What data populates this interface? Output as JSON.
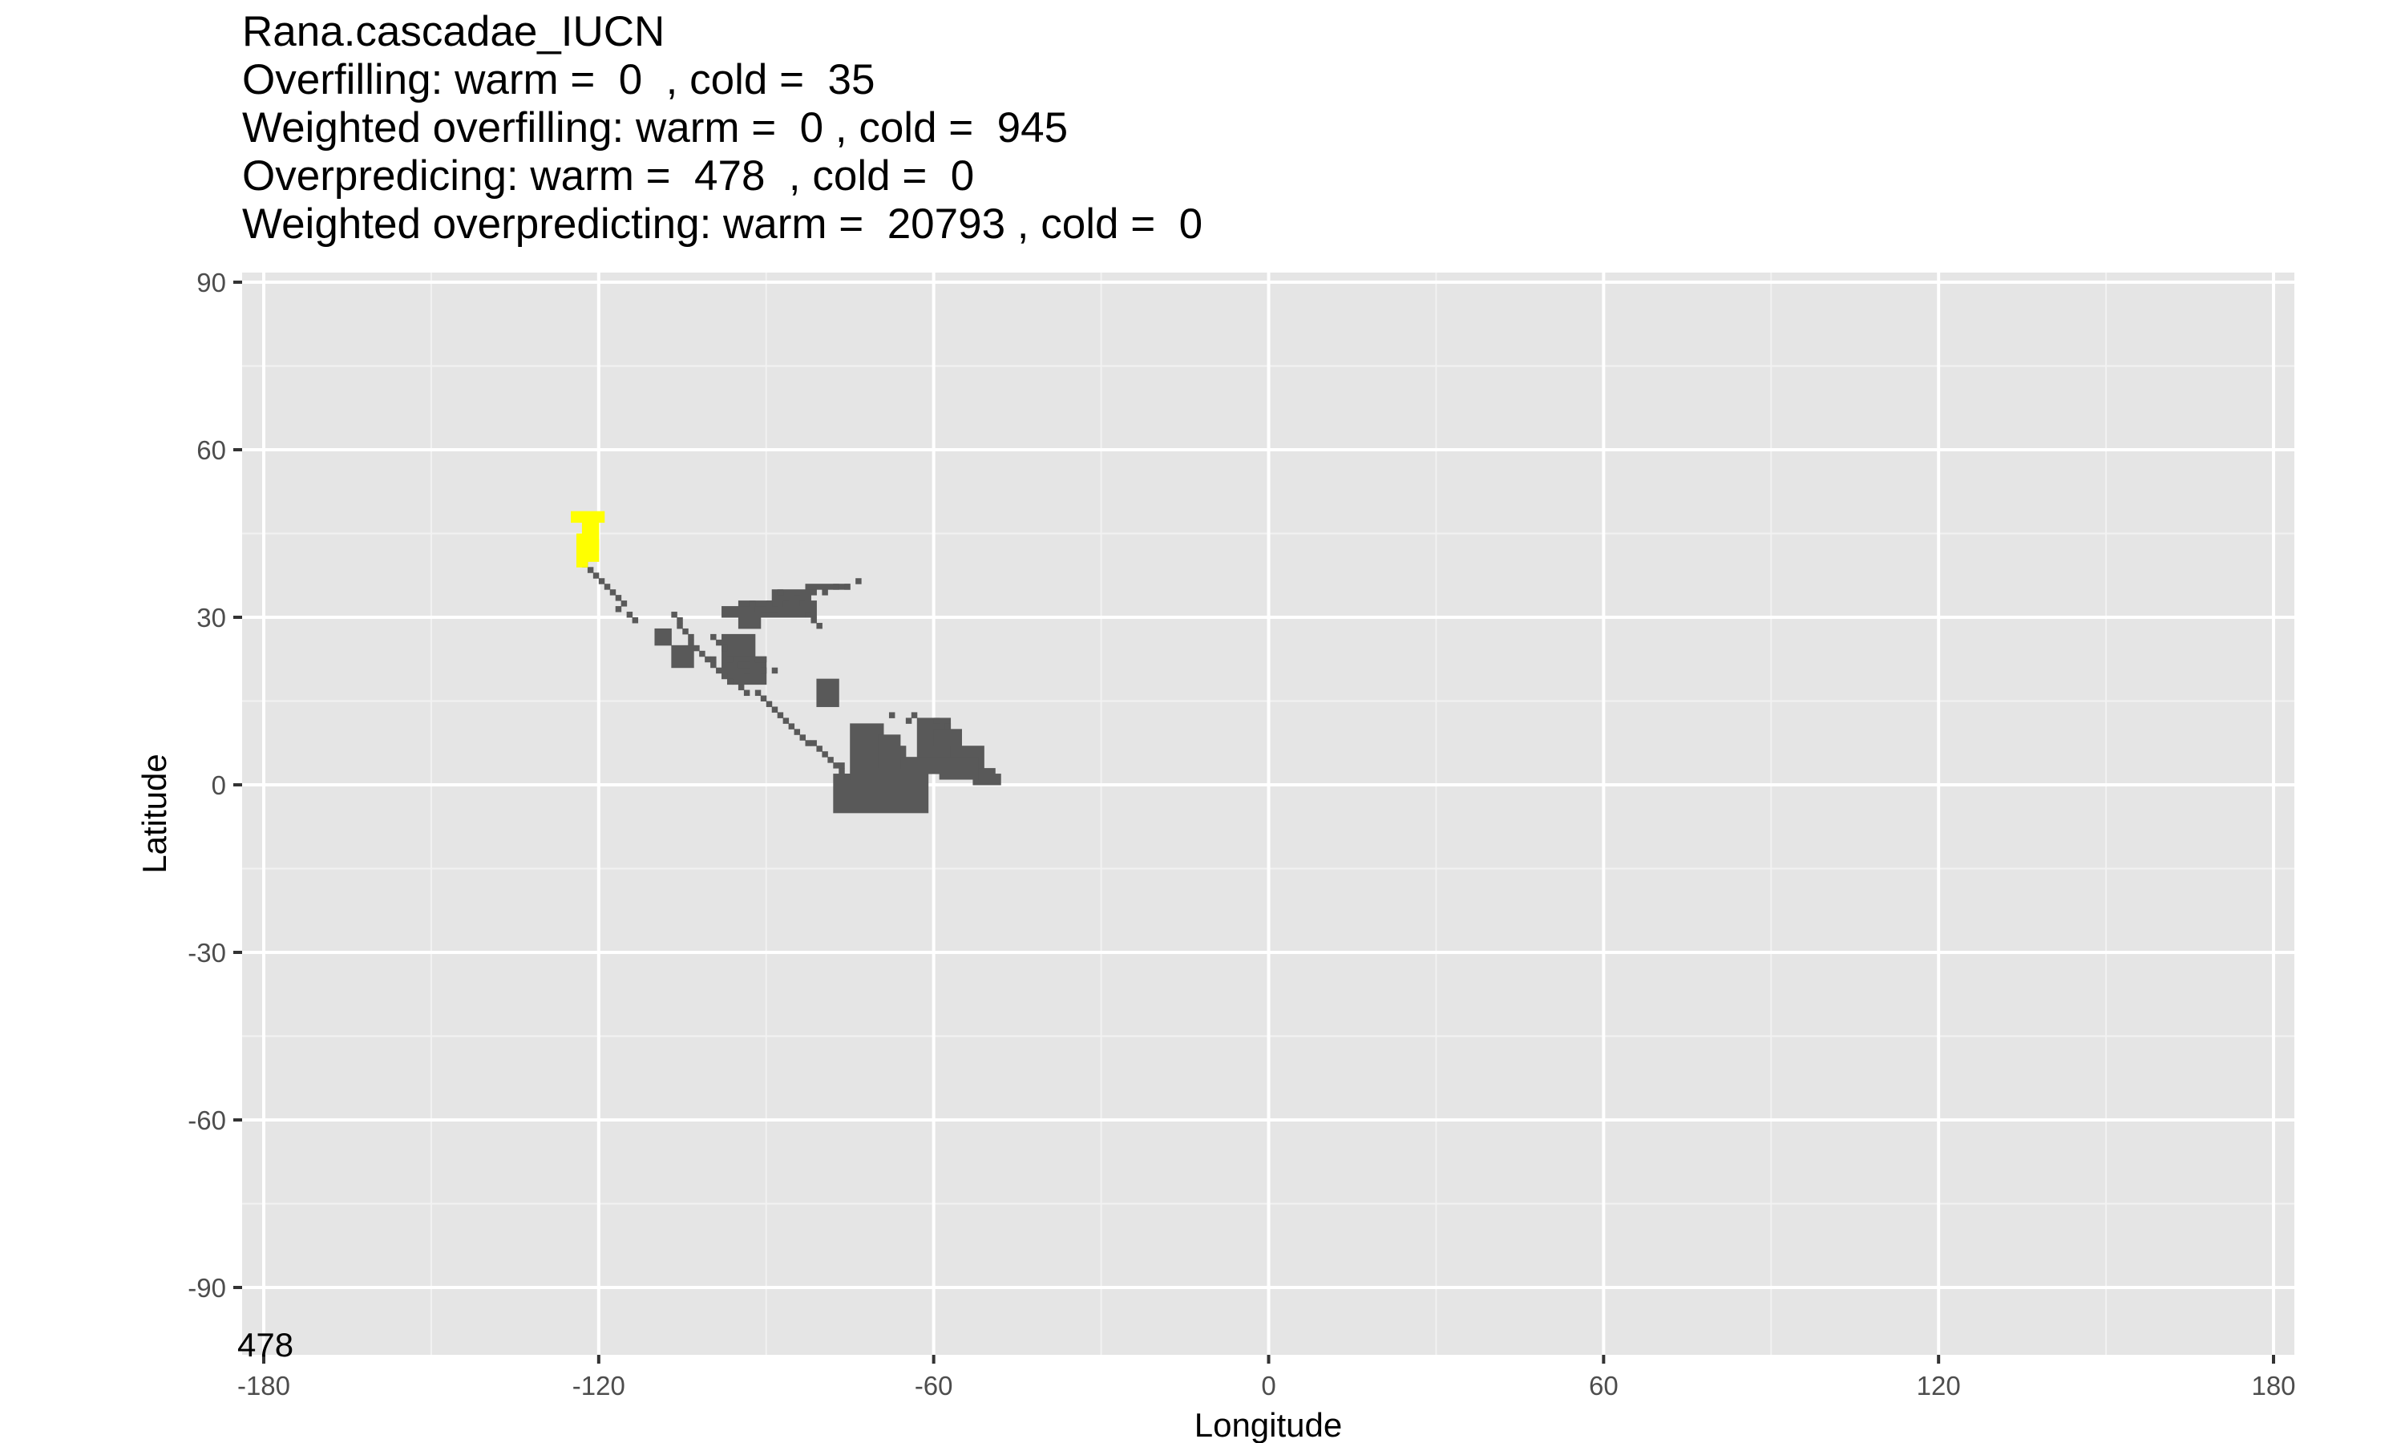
{
  "title_lines": [
    "Rana.cascadae_IUCN",
    "Overfilling: warm =  0  , cold =  35",
    "Weighted overfilling: warm =  0 , cold =  945",
    "Overpredicing: warm =  478  , cold =  0",
    "Weighted overpredicting: warm =  20793 , cold =  0"
  ],
  "panel_note": "478",
  "colors": {
    "panel": "#e5e5e5",
    "grid_major": "#ffffff",
    "grid_minor": "#f2f2f2",
    "range_cells": "#595959",
    "overfill_cells": "#ffff00",
    "tick_text": "#4d4d4d"
  },
  "chart_data": {
    "type": "heatmap",
    "title": "Rana.cascadae_IUCN",
    "xlabel": "Longitude",
    "ylabel": "Latitude",
    "xlim": [
      -180,
      180
    ],
    "ylim": [
      -90,
      90
    ],
    "x_ticks": [
      -180,
      -120,
      -60,
      0,
      60,
      120,
      180
    ],
    "y_ticks": [
      90,
      60,
      30,
      0,
      -30,
      -60,
      -90
    ],
    "grid": true,
    "legend": "none",
    "cell_size_deg": 1,
    "series": [
      {
        "color": "#595959",
        "cells": [
          [
            -123,
            39
          ],
          [
            -122,
            38
          ],
          [
            -121,
            37
          ],
          [
            -120,
            36
          ],
          [
            -119,
            35
          ],
          [
            -118,
            34
          ],
          [
            -117,
            33
          ],
          [
            -116,
            32
          ],
          [
            -117,
            31
          ],
          [
            -115,
            30
          ],
          [
            -114,
            29
          ],
          [
            -107,
            30
          ],
          [
            -106,
            29
          ],
          [
            -106,
            28
          ],
          [
            -105,
            27
          ],
          [
            -104,
            26
          ],
          [
            -104,
            25
          ],
          [
            -103,
            24
          ],
          [
            -102,
            23
          ],
          [
            -101,
            22
          ],
          [
            -100,
            21
          ],
          [
            -99,
            20
          ],
          [
            -98,
            19
          ],
          [
            -97,
            18
          ],
          [
            -95,
            17
          ],
          [
            -94,
            16
          ],
          [
            -92,
            16
          ],
          [
            -91,
            15
          ],
          [
            -90,
            14
          ],
          [
            -89,
            13
          ],
          [
            -88,
            12
          ],
          [
            -87,
            11
          ],
          [
            -86,
            10
          ],
          [
            -85,
            9
          ],
          [
            -84,
            8
          ],
          [
            -83,
            7
          ],
          [
            -82,
            7
          ],
          [
            -81,
            6
          ],
          [
            -80,
            5
          ],
          [
            -79,
            4
          ],
          [
            -78,
            3
          ],
          [
            -77,
            3
          ],
          [
            -77,
            2
          ],
          [
            -76,
            1
          ],
          [
            -100,
            26
          ],
          [
            -99,
            25
          ],
          [
            -100,
            22
          ],
          [
            -98,
            24
          ],
          [
            -97,
            22
          ],
          [
            -94,
            20
          ],
          [
            -91,
            20
          ],
          [
            -89,
            20
          ],
          [
            -95,
            21
          ],
          [
            -94,
            21
          ],
          [
            -92,
            22
          ],
          [
            -91,
            22
          ],
          [
            -93,
            32
          ],
          [
            -88,
            34
          ],
          [
            -85,
            33
          ],
          [
            -82,
            34
          ],
          [
            -80,
            34
          ],
          [
            -78,
            35
          ],
          [
            -76,
            35
          ],
          [
            -74,
            36
          ],
          [
            -92,
            31
          ],
          [
            -90,
            32
          ],
          [
            -87,
            32
          ],
          [
            -84,
            32
          ],
          [
            -83,
            30
          ],
          [
            -82,
            29
          ],
          [
            -81,
            28
          ],
          [
            -91,
            30
          ],
          [
            -90,
            30
          ],
          [
            -89,
            30
          ],
          [
            -68,
            12
          ],
          [
            -65,
            11
          ],
          [
            -64,
            12
          ],
          [
            -60,
            11
          ],
          [
            -58,
            10
          ]
        ],
        "blocks": [
          [
            -98,
            26,
            6,
            8
          ],
          [
            -96,
            22,
            6,
            5
          ],
          [
            -95,
            29,
            4,
            2
          ],
          [
            -107,
            24,
            4,
            4
          ],
          [
            -110,
            27,
            3,
            3
          ],
          [
            -95,
            32,
            14,
            3
          ],
          [
            -89,
            34,
            7,
            2
          ],
          [
            -83,
            35,
            8,
            1
          ],
          [
            -98,
            31,
            10,
            2
          ],
          [
            -81,
            18,
            4,
            5
          ],
          [
            -75,
            10,
            6,
            9
          ],
          [
            -78,
            1,
            17,
            7
          ],
          [
            -72,
            6,
            7,
            6
          ],
          [
            -63,
            11,
            6,
            9
          ],
          [
            -57,
            6,
            6,
            5
          ],
          [
            -53,
            2,
            4,
            3
          ],
          [
            -51,
            1,
            3,
            2
          ],
          [
            -66,
            4,
            12,
            3
          ],
          [
            -70,
            8,
            4,
            6
          ],
          [
            -59,
            4,
            7,
            4
          ],
          [
            -60,
            9,
            5,
            3
          ]
        ]
      },
      {
        "color": "#ffff00",
        "cells": [
          [
            -124,
            39
          ],
          [
            -123,
            39
          ]
        ],
        "blocks": [
          [
            -125,
            48,
            6,
            2
          ],
          [
            -123,
            46,
            3,
            7
          ],
          [
            -124,
            44,
            2,
            5
          ],
          [
            -122,
            43,
            2,
            2
          ]
        ]
      }
    ]
  }
}
